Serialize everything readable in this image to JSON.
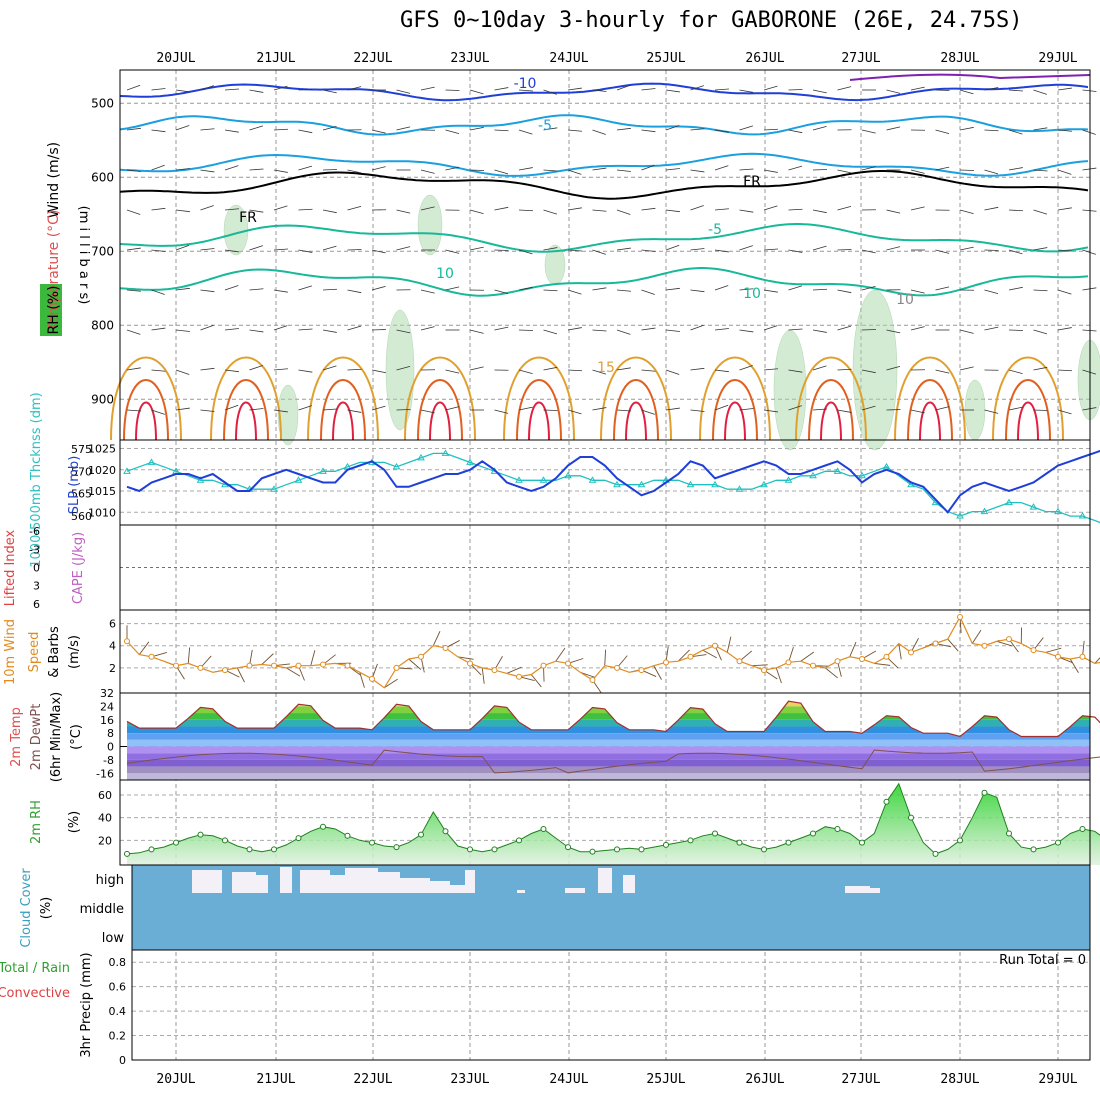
{
  "title": "GFS 0~10day 3-hourly for GABORONE (26E, 24.75S)",
  "dates": [
    "20JUL",
    "21JUL",
    "22JUL",
    "23JUL",
    "24JUL",
    "25JUL",
    "26JUL",
    "27JUL",
    "28JUL",
    "29JUL"
  ],
  "colors": {
    "temp_cold": "#1f3fd8",
    "temp_cool": "#1aa0e0",
    "temp_mid": "#18b89a",
    "temp_warm": "#e0a030",
    "temp_hot": "#e06020",
    "freezing": "#000000",
    "rh_fill": "#a8d8a8",
    "slp": "#1f3fd8",
    "thickness": "#20c0c0",
    "lifted": "#e04040",
    "wind10": "#e08c20",
    "cloud": "#6aaed6",
    "rh2m": "#30a030"
  },
  "panels": {
    "upper": {
      "label_wind": "Wind (m/s)",
      "label_temp": "Temperature (°C)",
      "label_rh": "RH (%)",
      "label_axis": "(m i l l i b a r s)",
      "ticks": [
        "500",
        "600",
        "700",
        "800",
        "900"
      ],
      "contour_labels": [
        "-10",
        "-5",
        "FR",
        "FR",
        "-5",
        "10",
        "10",
        "15",
        "10"
      ]
    },
    "pressure": {
      "label_thick": "1000-500mb Thcknss (dm)",
      "label_slp": "SLP (mb)",
      "left_ticks": [
        "575",
        "570",
        "565",
        "560"
      ],
      "right_ticks": [
        "1025",
        "1020",
        "1015",
        "1010"
      ]
    },
    "stability": {
      "label_li": "Lifted Index",
      "label_cape": "CAPE (J/kg)",
      "ticks": [
        "-6",
        "-3",
        "0",
        "3",
        "6"
      ]
    },
    "wind10": {
      "label_a": "10m Wind",
      "label_b": "Speed",
      "label_c": "& Barbs",
      "label_unit": "(m/s)",
      "ticks": [
        "6",
        "4",
        "2"
      ]
    },
    "temp2m": {
      "label_a": "2m Temp",
      "label_b": "2m DewPt",
      "label_c": "(6hr Min/Max)",
      "label_unit": "(°C)",
      "ticks": [
        "32",
        "24",
        "16",
        "8",
        "0",
        "-8",
        "-16"
      ]
    },
    "rh2m": {
      "label": "2m RH",
      "label_unit": "(%)",
      "ticks": [
        "60",
        "40",
        "20"
      ]
    },
    "cloud": {
      "label": "Cloud Cover",
      "label_unit": "(%)",
      "ticks": [
        "high",
        "middle",
        "low"
      ]
    },
    "precip": {
      "label_a": "Total / Rain",
      "label_b": "Convective",
      "label_c": "3hr Precip (mm)",
      "run_total": "Run Total = 0",
      "ticks": [
        "0.8",
        "0.6",
        "0.4",
        "0.2",
        "0"
      ]
    }
  },
  "chart_data": [
    {
      "type": "line",
      "panel": "SLP (mb)",
      "x_unit": "3-hourly steps from 19JUL 12Z",
      "series": [
        {
          "name": "SLP (mb)",
          "values": [
            1016,
            1015,
            1017,
            1018,
            1019,
            1019,
            1018,
            1019,
            1017,
            1015,
            1015,
            1018,
            1019,
            1020,
            1019,
            1018,
            1017,
            1017,
            1020,
            1021,
            1022,
            1020,
            1016,
            1016,
            1017,
            1018,
            1019,
            1019,
            1020,
            1022,
            1020,
            1017,
            1016,
            1015,
            1016,
            1018,
            1021,
            1023,
            1023,
            1021,
            1018,
            1016,
            1014,
            1015,
            1017,
            1019,
            1022,
            1021,
            1018,
            1019,
            1020,
            1021,
            1022,
            1021,
            1019,
            1019,
            1020,
            1021,
            1022,
            1020,
            1017,
            1019,
            1020,
            1019,
            1017,
            1016,
            1013,
            1010,
            1014,
            1016,
            1017,
            1016,
            1015,
            1016,
            1017,
            1019,
            1021,
            1022,
            1023,
            1024,
            1025,
            1022,
            1020,
            1019,
            1020,
            1020,
            1021
          ]
        },
        {
          "name": "1000-500mb Thcknss (dm)",
          "values": [
            570,
            571,
            572,
            571,
            570,
            569,
            568,
            568,
            567,
            567,
            566,
            566,
            566,
            567,
            568,
            569,
            570,
            570,
            571,
            572,
            572,
            572,
            571,
            572,
            573,
            574,
            574,
            573,
            572,
            571,
            570,
            569,
            568,
            568,
            568,
            568,
            569,
            569,
            568,
            568,
            567,
            567,
            567,
            568,
            568,
            568,
            567,
            567,
            567,
            566,
            566,
            566,
            567,
            568,
            568,
            569,
            569,
            570,
            570,
            569,
            569,
            570,
            571,
            569,
            567,
            566,
            563,
            561,
            560,
            561,
            561,
            562,
            563,
            563,
            562,
            561,
            561,
            560,
            560,
            559,
            558,
            559,
            560,
            560,
            561,
            560,
            560
          ]
        }
      ],
      "ylim_left": [
        558,
        577
      ],
      "ylim_right": [
        1007,
        1027
      ]
    },
    {
      "type": "line",
      "panel": "10m Wind Speed (m/s)",
      "values": [
        4.4,
        3.2,
        3.0,
        2.6,
        2.2,
        2.4,
        2.0,
        1.6,
        1.8,
        2.0,
        2.2,
        2.3,
        2.2,
        2.0,
        2.2,
        2.2,
        2.3,
        2.4,
        2.2,
        1.6,
        1.0,
        0.2,
        2.0,
        2.8,
        3.0,
        4.0,
        3.8,
        3.0,
        2.4,
        2.0,
        1.8,
        1.5,
        1.2,
        1.4,
        2.2,
        2.6,
        2.4,
        1.6,
        0.9,
        2.2,
        2.0,
        1.6,
        1.8,
        2.2,
        2.5,
        2.6,
        3.0,
        3.6,
        4.0,
        3.4,
        2.6,
        2.2,
        1.8,
        2.0,
        2.5,
        2.6,
        2.2,
        2.0,
        2.6,
        3.0,
        2.8,
        2.4,
        3.0,
        4.2,
        3.4,
        3.8,
        4.2,
        4.6,
        6.6,
        4.2,
        4.0,
        4.4,
        4.6,
        4.2,
        3.6,
        3.4,
        3.0,
        2.8,
        3.0,
        2.4,
        2.6,
        1.6,
        1.6,
        1.0,
        0.8,
        1.0,
        1.4
      ]
    },
    {
      "type": "line",
      "panel": "2m RH (%)",
      "values": [
        8,
        9,
        12,
        14,
        18,
        22,
        25,
        24,
        20,
        15,
        12,
        10,
        12,
        16,
        22,
        28,
        32,
        30,
        24,
        20,
        18,
        15,
        14,
        18,
        25,
        45,
        28,
        15,
        12,
        10,
        12,
        16,
        20,
        26,
        30,
        22,
        14,
        10,
        10,
        11,
        12,
        13,
        12,
        14,
        16,
        18,
        20,
        24,
        26,
        22,
        18,
        14,
        12,
        14,
        18,
        22,
        26,
        32,
        30,
        26,
        18,
        26,
        54,
        70,
        40,
        18,
        8,
        12,
        20,
        40,
        62,
        58,
        26,
        14,
        12,
        14,
        18,
        26,
        30,
        28,
        20,
        14,
        12,
        14,
        18,
        24,
        26
      ]
    },
    {
      "type": "area",
      "panel": "2m Temp (°C)",
      "series": [
        {
          "name": "2m Temp",
          "pattern_daily_max": [
            24,
            24,
            26,
            26,
            25,
            24,
            24,
            28,
            19,
            19
          ],
          "pattern_daily_min": [
            11,
            11,
            11,
            10,
            10,
            10,
            9,
            9,
            8,
            6
          ]
        },
        {
          "name": "2m DewPt",
          "range": [
            -16,
            4
          ]
        }
      ],
      "ylim": [
        -20,
        32
      ]
    },
    {
      "type": "bar",
      "panel": "Cloud Cover (%)",
      "levels": [
        "high",
        "middle",
        "low"
      ],
      "note": "high cloud bands around 20JUL–23JUL and 24JUL, 26JUL-27JUL small"
    },
    {
      "type": "bar",
      "panel": "3hr Precip (mm)",
      "values_total": 0,
      "ylim": [
        0,
        0.9
      ]
    }
  ]
}
